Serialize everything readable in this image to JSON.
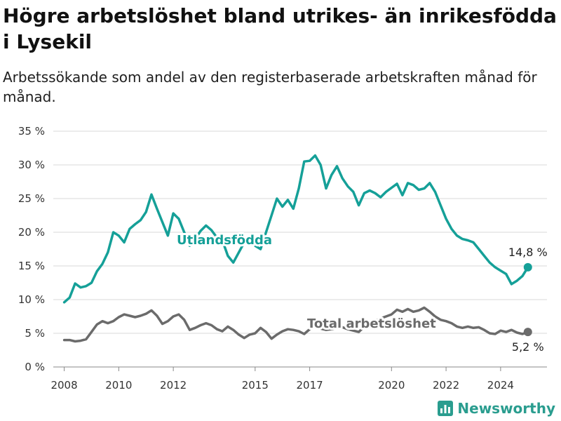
{
  "title": "Högre arbetslöshet bland utrikes- än inrikesfödda i Lysekil",
  "subtitle": "Arbetssökande som andel av den registerbaserade arbetskraften månad för månad.",
  "brand": "Newsworthy",
  "colors": {
    "foreign": "#15a098",
    "total": "#6b6b6b",
    "grid": "#d8d8d8",
    "brand": "#2a9d8f"
  },
  "chart_data": {
    "type": "line",
    "ylim": [
      0,
      35
    ],
    "xlim": [
      2007.6,
      2025.7
    ],
    "y_ticks": [
      0,
      5,
      10,
      15,
      20,
      25,
      30,
      35
    ],
    "y_tick_labels": [
      "0 %",
      "5 %",
      "10 %",
      "15 %",
      "20 %",
      "25 %",
      "30 %",
      "35 %"
    ],
    "x_ticks": [
      2008,
      2010,
      2012,
      2015,
      2017,
      2020,
      2022,
      2024
    ],
    "x_tick_labels": [
      "2008",
      "2010",
      "2012",
      "2015",
      "2017",
      "2020",
      "2022",
      "2024"
    ],
    "grid": true,
    "series": [
      {
        "name": "Utlandsfödda",
        "color": "#15a098",
        "end_label": "14,8 %",
        "points": [
          [
            2008.0,
            9.6
          ],
          [
            2008.2,
            10.3
          ],
          [
            2008.4,
            12.4
          ],
          [
            2008.6,
            11.8
          ],
          [
            2008.8,
            12.0
          ],
          [
            2009.0,
            12.5
          ],
          [
            2009.2,
            14.2
          ],
          [
            2009.4,
            15.3
          ],
          [
            2009.6,
            17.0
          ],
          [
            2009.8,
            20.0
          ],
          [
            2010.0,
            19.5
          ],
          [
            2010.2,
            18.5
          ],
          [
            2010.4,
            20.5
          ],
          [
            2010.6,
            21.2
          ],
          [
            2010.8,
            21.8
          ],
          [
            2011.0,
            23.0
          ],
          [
            2011.2,
            25.6
          ],
          [
            2011.4,
            23.5
          ],
          [
            2011.6,
            21.5
          ],
          [
            2011.8,
            19.5
          ],
          [
            2012.0,
            22.8
          ],
          [
            2012.2,
            22.0
          ],
          [
            2012.4,
            20.0
          ],
          [
            2012.6,
            18.0
          ],
          [
            2012.8,
            19.0
          ],
          [
            2013.0,
            20.2
          ],
          [
            2013.2,
            21.0
          ],
          [
            2013.4,
            20.3
          ],
          [
            2013.6,
            19.2
          ],
          [
            2013.8,
            18.8
          ],
          [
            2014.0,
            16.5
          ],
          [
            2014.2,
            15.5
          ],
          [
            2014.4,
            17.0
          ],
          [
            2014.6,
            18.5
          ],
          [
            2014.8,
            19.3
          ],
          [
            2015.0,
            18.0
          ],
          [
            2015.2,
            17.5
          ],
          [
            2015.4,
            20.0
          ],
          [
            2015.6,
            22.5
          ],
          [
            2015.8,
            25.0
          ],
          [
            2016.0,
            23.8
          ],
          [
            2016.2,
            24.8
          ],
          [
            2016.4,
            23.5
          ],
          [
            2016.6,
            26.5
          ],
          [
            2016.8,
            30.5
          ],
          [
            2017.0,
            30.6
          ],
          [
            2017.2,
            31.4
          ],
          [
            2017.4,
            30.0
          ],
          [
            2017.6,
            26.5
          ],
          [
            2017.8,
            28.5
          ],
          [
            2018.0,
            29.8
          ],
          [
            2018.2,
            28.0
          ],
          [
            2018.4,
            26.8
          ],
          [
            2018.6,
            26.0
          ],
          [
            2018.8,
            24.0
          ],
          [
            2019.0,
            25.8
          ],
          [
            2019.2,
            26.2
          ],
          [
            2019.4,
            25.8
          ],
          [
            2019.6,
            25.2
          ],
          [
            2019.8,
            26.0
          ],
          [
            2020.0,
            26.6
          ],
          [
            2020.2,
            27.2
          ],
          [
            2020.4,
            25.5
          ],
          [
            2020.6,
            27.3
          ],
          [
            2020.8,
            27.0
          ],
          [
            2021.0,
            26.3
          ],
          [
            2021.2,
            26.5
          ],
          [
            2021.4,
            27.3
          ],
          [
            2021.6,
            26.0
          ],
          [
            2021.8,
            24.0
          ],
          [
            2022.0,
            22.0
          ],
          [
            2022.2,
            20.5
          ],
          [
            2022.4,
            19.5
          ],
          [
            2022.6,
            19.0
          ],
          [
            2022.8,
            18.8
          ],
          [
            2023.0,
            18.5
          ],
          [
            2023.2,
            17.5
          ],
          [
            2023.4,
            16.5
          ],
          [
            2023.6,
            15.5
          ],
          [
            2023.8,
            14.8
          ],
          [
            2024.0,
            14.3
          ],
          [
            2024.2,
            13.8
          ],
          [
            2024.4,
            12.3
          ],
          [
            2024.6,
            12.8
          ],
          [
            2024.8,
            13.5
          ],
          [
            2025.0,
            14.8
          ]
        ]
      },
      {
        "name": "Total arbetslöshet",
        "color": "#6b6b6b",
        "end_label": "5,2 %",
        "points": [
          [
            2008.0,
            4.0
          ],
          [
            2008.2,
            4.0
          ],
          [
            2008.4,
            3.8
          ],
          [
            2008.6,
            3.9
          ],
          [
            2008.8,
            4.1
          ],
          [
            2009.0,
            5.2
          ],
          [
            2009.2,
            6.3
          ],
          [
            2009.4,
            6.8
          ],
          [
            2009.6,
            6.5
          ],
          [
            2009.8,
            6.8
          ],
          [
            2010.0,
            7.4
          ],
          [
            2010.2,
            7.8
          ],
          [
            2010.4,
            7.6
          ],
          [
            2010.6,
            7.4
          ],
          [
            2010.8,
            7.6
          ],
          [
            2011.0,
            7.9
          ],
          [
            2011.2,
            8.4
          ],
          [
            2011.4,
            7.6
          ],
          [
            2011.6,
            6.4
          ],
          [
            2011.8,
            6.8
          ],
          [
            2012.0,
            7.5
          ],
          [
            2012.2,
            7.8
          ],
          [
            2012.4,
            7.0
          ],
          [
            2012.6,
            5.5
          ],
          [
            2012.8,
            5.8
          ],
          [
            2013.0,
            6.2
          ],
          [
            2013.2,
            6.5
          ],
          [
            2013.4,
            6.2
          ],
          [
            2013.6,
            5.6
          ],
          [
            2013.8,
            5.3
          ],
          [
            2014.0,
            6.0
          ],
          [
            2014.2,
            5.5
          ],
          [
            2014.4,
            4.8
          ],
          [
            2014.6,
            4.3
          ],
          [
            2014.8,
            4.8
          ],
          [
            2015.0,
            5.0
          ],
          [
            2015.2,
            5.8
          ],
          [
            2015.4,
            5.2
          ],
          [
            2015.6,
            4.2
          ],
          [
            2015.8,
            4.8
          ],
          [
            2016.0,
            5.3
          ],
          [
            2016.2,
            5.6
          ],
          [
            2016.4,
            5.5
          ],
          [
            2016.6,
            5.3
          ],
          [
            2016.8,
            4.9
          ],
          [
            2017.0,
            5.6
          ],
          [
            2017.2,
            6.2
          ],
          [
            2017.4,
            5.7
          ],
          [
            2017.6,
            5.5
          ],
          [
            2017.8,
            5.6
          ],
          [
            2018.0,
            5.8
          ],
          [
            2018.2,
            5.9
          ],
          [
            2018.4,
            5.6
          ],
          [
            2018.6,
            5.4
          ],
          [
            2018.8,
            5.2
          ],
          [
            2019.0,
            6.0
          ],
          [
            2019.2,
            6.5
          ],
          [
            2019.4,
            6.8
          ],
          [
            2019.6,
            7.2
          ],
          [
            2019.8,
            7.5
          ],
          [
            2020.0,
            7.8
          ],
          [
            2020.2,
            8.5
          ],
          [
            2020.4,
            8.2
          ],
          [
            2020.6,
            8.6
          ],
          [
            2020.8,
            8.2
          ],
          [
            2021.0,
            8.4
          ],
          [
            2021.2,
            8.8
          ],
          [
            2021.4,
            8.2
          ],
          [
            2021.6,
            7.5
          ],
          [
            2021.8,
            7.0
          ],
          [
            2022.0,
            6.8
          ],
          [
            2022.2,
            6.5
          ],
          [
            2022.4,
            6.0
          ],
          [
            2022.6,
            5.8
          ],
          [
            2022.8,
            6.0
          ],
          [
            2023.0,
            5.8
          ],
          [
            2023.2,
            5.9
          ],
          [
            2023.4,
            5.5
          ],
          [
            2023.6,
            5.0
          ],
          [
            2023.8,
            4.9
          ],
          [
            2024.0,
            5.4
          ],
          [
            2024.2,
            5.2
          ],
          [
            2024.4,
            5.5
          ],
          [
            2024.6,
            5.1
          ],
          [
            2024.8,
            4.9
          ],
          [
            2025.0,
            5.2
          ]
        ]
      }
    ]
  }
}
